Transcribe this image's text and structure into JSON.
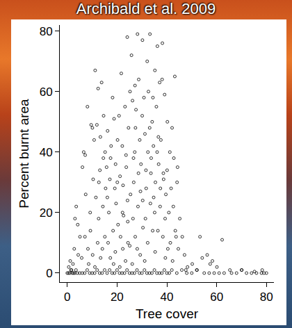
{
  "chart_data": {
    "type": "scatter",
    "title": "Archibald et al. 2009",
    "x_label": "Tree cover",
    "y_label": "Percent burnt area",
    "x": [
      0,
      0.5,
      1,
      1.5,
      2,
      2.5,
      3,
      3.5,
      4,
      5,
      6,
      7,
      8,
      9,
      10,
      11,
      12,
      13,
      14,
      15,
      16,
      17,
      18,
      19,
      20,
      21,
      22,
      23,
      24,
      25,
      26,
      27,
      28,
      29,
      30,
      31,
      32,
      33,
      34,
      35,
      36,
      37,
      38,
      39,
      40,
      41,
      42,
      44,
      46,
      48,
      50,
      52,
      55,
      57,
      59,
      61,
      63,
      66,
      68,
      70,
      72,
      74,
      76,
      78,
      79,
      80,
      0.6,
      1.2,
      2.3,
      3.1,
      3.6,
      4.2,
      5.1,
      1.7,
      4.4,
      2.8,
      6.1,
      6.6,
      7.2,
      8.1,
      7.4,
      8.3,
      9.2,
      9.6,
      10.1,
      10.4,
      5.8,
      7.1,
      8.6,
      9.3,
      10.2,
      11.2,
      10.8,
      12.4,
      11.9,
      13.1,
      12.6,
      14.3,
      13.8,
      15.2,
      14.6,
      12.2,
      13.4,
      14.1,
      11.5,
      15.4,
      14.5,
      11.1,
      15.1,
      12.7,
      13.3,
      16.2,
      15.8,
      17.1,
      16.7,
      18.2,
      17.6,
      19.1,
      18.8,
      20.2,
      19.6,
      16.4,
      17.3,
      18.4,
      19.3,
      20.4,
      16.1,
      17.4,
      18.6,
      19.4,
      20.1,
      21.2,
      20.8,
      22.1,
      21.7,
      23.2,
      22.6,
      24.1,
      23.7,
      25.2,
      24.6,
      21.4,
      22.3,
      23.4,
      24.3,
      25.4,
      21.1,
      22.4,
      23.6,
      24.4,
      25.1,
      22.2,
      24.2,
      26.2,
      25.8,
      27.1,
      26.7,
      28.2,
      27.6,
      29.1,
      28.7,
      30.2,
      29.6,
      26.4,
      27.3,
      28.4,
      29.3,
      30.4,
      26.1,
      27.4,
      28.6,
      29.4,
      30.1,
      27.2,
      28.1,
      26.6,
      30.3,
      31.2,
      30.8,
      32.1,
      31.7,
      33.2,
      32.6,
      34.1,
      33.7,
      35.2,
      34.6,
      31.4,
      32.3,
      33.4,
      34.3,
      35.4,
      31.1,
      32.4,
      33.6,
      34.4,
      35.1,
      31.6,
      33.1,
      34.7,
      35.3,
      36.2,
      35.8,
      37.1,
      36.7,
      38.2,
      37.6,
      39.1,
      38.7,
      40.2,
      39.6,
      36.4,
      37.3,
      38.4,
      39.3,
      40.4,
      36.1,
      37.4,
      38.6,
      39.4,
      40.1,
      36.6,
      38.1,
      41.2,
      40.8,
      42.1,
      41.7,
      43.2,
      42.6,
      44.1,
      43.7,
      45.2,
      44.6,
      41.4,
      42.3,
      43.4,
      44.3,
      42.8,
      46.2,
      47.1,
      48.3,
      50.2,
      52.1,
      53.3,
      54.2,
      47.6,
      56.2,
      57.4,
      58.3,
      60.1,
      62.2,
      65.3,
      70.1,
      75.2,
      78.3
    ],
    "values": [
      0,
      0,
      0,
      1,
      0,
      0,
      0,
      1,
      0,
      0,
      0,
      0,
      1,
      0,
      0,
      0,
      1,
      0,
      0,
      1,
      0,
      1,
      0,
      0,
      1,
      0,
      0,
      0,
      1,
      0,
      0,
      0,
      1,
      0,
      0,
      1,
      0,
      0,
      0,
      1,
      0,
      0,
      0,
      1,
      0,
      0,
      1,
      0,
      1,
      0,
      0,
      1,
      0,
      0,
      0,
      0,
      0,
      0,
      0,
      1,
      0,
      0,
      0,
      0,
      0,
      0,
      2,
      4,
      3,
      18,
      22,
      16,
      12,
      1,
      6,
      8,
      35,
      40,
      39,
      55,
      26,
      8,
      20,
      49,
      48,
      31,
      5,
      12,
      3,
      14,
      6,
      67,
      44,
      61,
      49,
      34,
      18,
      22,
      63,
      40,
      52,
      10,
      5,
      8,
      25,
      28,
      38,
      2,
      12,
      30,
      45,
      47,
      35,
      31,
      20,
      58,
      42,
      28,
      51,
      44,
      23,
      10,
      5,
      14,
      7,
      16,
      25,
      38,
      3,
      36,
      30,
      32,
      52,
      42,
      66,
      55,
      19,
      78,
      35,
      60,
      48,
      12,
      8,
      4,
      17,
      26,
      2,
      29,
      39,
      10,
      9,
      20,
      24,
      57,
      72,
      40,
      30,
      79,
      54,
      44,
      64,
      77,
      36,
      18,
      12,
      22,
      6,
      15,
      3,
      48,
      33,
      27,
      52,
      62,
      8,
      38,
      24,
      46,
      58,
      70,
      28,
      79,
      60,
      50,
      38,
      67,
      42,
      18,
      10,
      23,
      14,
      30,
      4,
      40,
      33,
      58,
      20,
      34,
      48,
      25,
      7,
      75,
      55,
      63,
      36,
      76,
      44,
      59,
      31,
      50,
      26,
      14,
      22,
      12,
      18,
      8,
      40,
      28,
      33,
      5,
      34,
      45,
      64,
      40,
      20,
      48,
      28,
      65,
      22,
      30,
      12,
      18,
      8,
      10,
      4,
      14,
      35,
      38,
      12,
      6,
      2,
      3,
      1,
      12,
      5,
      1,
      6,
      3,
      4,
      2,
      11,
      1,
      1,
      0.5,
      1
    ],
    "color": "#000000",
    "marker": "open circle",
    "xlim": [
      -3,
      83
    ],
    "ylim": [
      -3,
      82
    ],
    "xticks": [
      0,
      20,
      40,
      60,
      80
    ],
    "yticks": [
      0,
      20,
      40,
      60,
      80
    ],
    "grid": false
  }
}
